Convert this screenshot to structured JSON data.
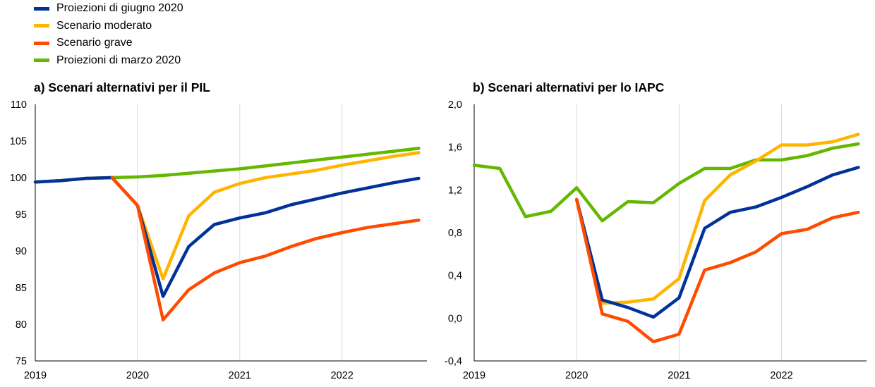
{
  "legend": [
    {
      "label": "Proiezioni di giugno 2020",
      "color": "#003299"
    },
    {
      "label": "Scenario moderato",
      "color": "#FFB400"
    },
    {
      "label": "Scenario grave",
      "color": "#FF4B00"
    },
    {
      "label": "Proiezioni di marzo 2020",
      "color": "#65B800"
    }
  ],
  "chart_data": [
    {
      "type": "line",
      "title": "a) Scenari alternativi per il PIL",
      "x_ticks": [
        "2019",
        "2020",
        "2021",
        "2022"
      ],
      "y_ticks": [
        "75",
        "80",
        "85",
        "90",
        "95",
        "100",
        "105",
        "110"
      ],
      "ylim": [
        75,
        110
      ],
      "xlim": [
        2019.0,
        2022.83
      ],
      "grid": "vertical at years",
      "x": [
        2019.0,
        2019.25,
        2019.5,
        2019.75,
        2020.0,
        2020.25,
        2020.5,
        2020.75,
        2021.0,
        2021.25,
        2021.5,
        2021.75,
        2022.0,
        2022.25,
        2022.5,
        2022.75
      ],
      "series": [
        {
          "name": "Proiezioni di marzo 2020",
          "color": "#65B800",
          "values": [
            99.4,
            99.6,
            99.9,
            100.0,
            100.1,
            100.3,
            100.6,
            100.9,
            101.2,
            101.6,
            102.0,
            102.4,
            102.8,
            103.2,
            103.6,
            104.0
          ]
        },
        {
          "name": "Scenario moderato",
          "color": "#FFB400",
          "values": [
            99.4,
            99.6,
            99.9,
            100.0,
            96.2,
            86.2,
            94.8,
            98.0,
            99.2,
            100.0,
            100.5,
            101.0,
            101.7,
            102.3,
            102.9,
            103.4
          ]
        },
        {
          "name": "Proiezioni di giugno 2020",
          "color": "#003299",
          "values": [
            99.4,
            99.6,
            99.9,
            100.0,
            96.2,
            83.8,
            90.6,
            93.6,
            94.5,
            95.2,
            96.3,
            97.1,
            97.9,
            98.6,
            99.3,
            99.9
          ]
        },
        {
          "name": "Scenario grave",
          "color": "#FF4B00",
          "values": [
            null,
            null,
            null,
            100.0,
            96.2,
            80.6,
            84.7,
            87.0,
            88.4,
            89.3,
            90.6,
            91.7,
            92.5,
            93.2,
            93.7,
            94.2
          ]
        }
      ]
    },
    {
      "type": "line",
      "title": "b) Scenari alternativi per lo IAPC",
      "x_ticks": [
        "2019",
        "2020",
        "2021",
        "2022"
      ],
      "y_ticks": [
        "-0,4",
        "0,0",
        "0,4",
        "0,8",
        "1,2",
        "1,6",
        "2,0"
      ],
      "ylim": [
        -0.4,
        2.0
      ],
      "xlim": [
        2019.0,
        2022.83
      ],
      "grid": "vertical at years",
      "x": [
        2019.0,
        2019.25,
        2019.5,
        2019.75,
        2020.0,
        2020.25,
        2020.5,
        2020.75,
        2021.0,
        2021.25,
        2021.5,
        2021.75,
        2022.0,
        2022.25,
        2022.5,
        2022.75
      ],
      "series": [
        {
          "name": "Proiezioni di marzo 2020",
          "color": "#65B800",
          "values": [
            1.43,
            1.4,
            0.95,
            1.0,
            1.22,
            0.91,
            1.09,
            1.08,
            1.26,
            1.4,
            1.4,
            1.48,
            1.48,
            1.52,
            1.59,
            1.63
          ]
        },
        {
          "name": "Scenario moderato",
          "color": "#FFB400",
          "values": [
            null,
            null,
            null,
            null,
            1.11,
            0.14,
            0.15,
            0.18,
            0.37,
            1.1,
            1.34,
            1.47,
            1.62,
            1.62,
            1.65,
            1.72
          ]
        },
        {
          "name": "Proiezioni di giugno 2020",
          "color": "#003299",
          "values": [
            null,
            null,
            null,
            null,
            1.11,
            0.17,
            0.1,
            0.01,
            0.19,
            0.84,
            0.99,
            1.04,
            1.13,
            1.23,
            1.34,
            1.41
          ]
        },
        {
          "name": "Scenario grave",
          "color": "#FF4B00",
          "values": [
            null,
            null,
            null,
            null,
            1.11,
            0.04,
            -0.03,
            -0.22,
            -0.15,
            0.45,
            0.52,
            0.62,
            0.79,
            0.83,
            0.94,
            0.99
          ]
        }
      ]
    }
  ]
}
